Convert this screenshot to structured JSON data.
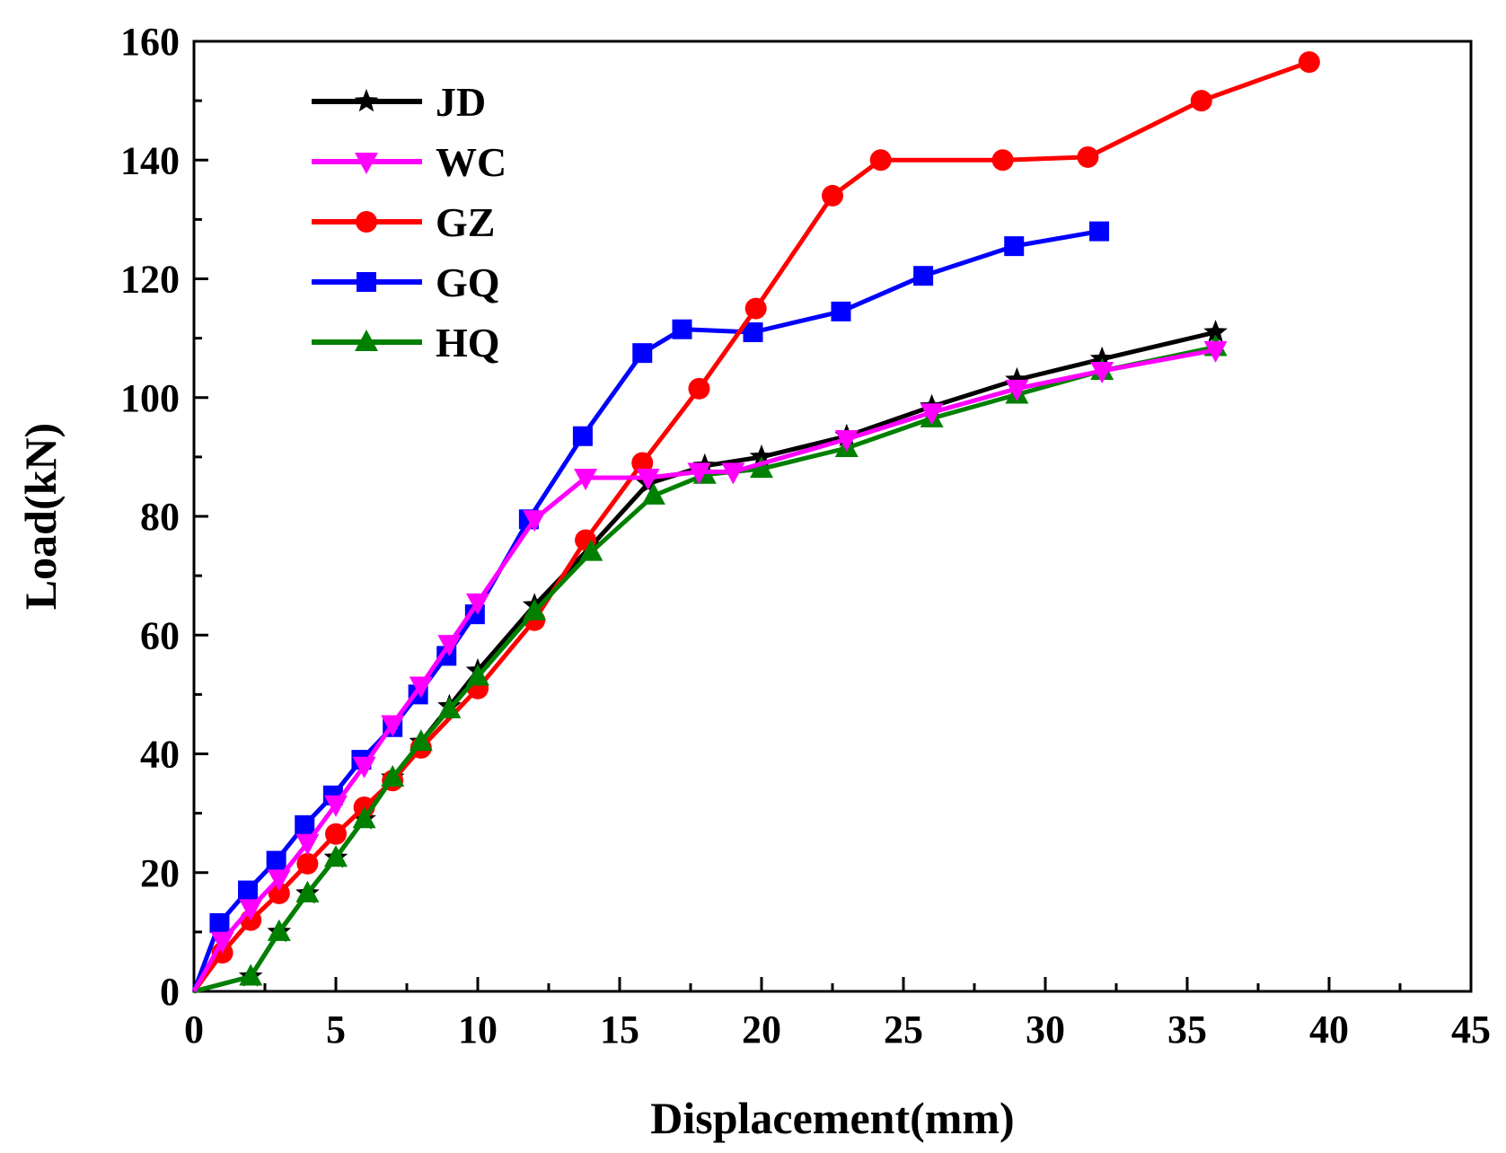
{
  "chart_data": {
    "type": "line",
    "title": "",
    "xlabel": "Displacement(mm)",
    "ylabel": "Load(kN)",
    "xlim": [
      0,
      45
    ],
    "ylim": [
      0,
      160
    ],
    "xticks": [
      0,
      5,
      10,
      15,
      20,
      25,
      30,
      35,
      40,
      45
    ],
    "yticks": [
      0,
      20,
      40,
      60,
      80,
      100,
      120,
      140,
      160
    ],
    "legend_position": "top-left",
    "grid": false,
    "series": [
      {
        "name": "JD",
        "color": "#000000",
        "marker": "star",
        "x": [
          0,
          2,
          3,
          4,
          5,
          6,
          7,
          8,
          9,
          10,
          12,
          14,
          16,
          18,
          20,
          23,
          26,
          29,
          32,
          36
        ],
        "y": [
          0,
          2.5,
          10,
          16.5,
          22.5,
          29,
          36,
          42,
          48,
          54,
          65,
          75,
          85.5,
          88.5,
          90,
          93.5,
          98.5,
          103,
          106.5,
          111
        ]
      },
      {
        "name": "WC",
        "color": "#ff00ff",
        "marker": "triangle-down",
        "x": [
          0,
          1,
          2,
          3,
          4,
          5,
          6,
          7,
          8,
          9,
          10,
          12,
          13.8,
          16,
          17.8,
          19,
          23,
          26,
          29,
          32,
          36
        ],
        "y": [
          0,
          8.5,
          14,
          19,
          25,
          31.5,
          38,
          45,
          51.5,
          58.5,
          65.5,
          79.5,
          86.5,
          86.5,
          87.5,
          87.5,
          93,
          97.5,
          101.5,
          104.5,
          108
        ]
      },
      {
        "name": "GZ",
        "color": "#ff0000",
        "marker": "circle",
        "x": [
          0,
          1,
          2,
          3,
          4,
          5,
          6,
          7,
          8,
          10,
          12,
          13.8,
          15.8,
          17.8,
          19.8,
          22.5,
          24.2,
          28.5,
          31.5,
          35.5,
          39.3
        ],
        "y": [
          0,
          6.5,
          12,
          16.5,
          21.5,
          26.5,
          31,
          35.5,
          41,
          51,
          62.5,
          76,
          89,
          101.5,
          115,
          134,
          140,
          140,
          140.5,
          150,
          156.5
        ]
      },
      {
        "name": "GQ",
        "color": "#0000ff",
        "marker": "square",
        "x": [
          0,
          0.9,
          1.9,
          2.9,
          3.9,
          4.9,
          5.9,
          7,
          7.9,
          8.9,
          9.9,
          11.8,
          13.7,
          15.8,
          17.2,
          19.7,
          22.8,
          25.7,
          28.9,
          31.9
        ],
        "y": [
          0,
          11.5,
          17,
          22,
          28,
          33,
          39,
          44.5,
          50,
          56.5,
          63.5,
          79.5,
          93.5,
          107.5,
          111.5,
          111,
          114.5,
          120.5,
          125.5,
          128
        ]
      },
      {
        "name": "HQ",
        "color": "#008000",
        "marker": "triangle-up",
        "x": [
          0,
          2,
          3,
          4,
          5,
          6,
          7,
          8,
          9,
          10,
          12,
          14,
          16.2,
          18,
          20,
          23,
          26,
          29,
          32,
          36
        ],
        "y": [
          0,
          2.5,
          10,
          16.5,
          22.5,
          29,
          36,
          42,
          47.5,
          53,
          64,
          74,
          83.5,
          87,
          88,
          91.5,
          96.5,
          100.5,
          104.5,
          108.5
        ]
      }
    ]
  }
}
